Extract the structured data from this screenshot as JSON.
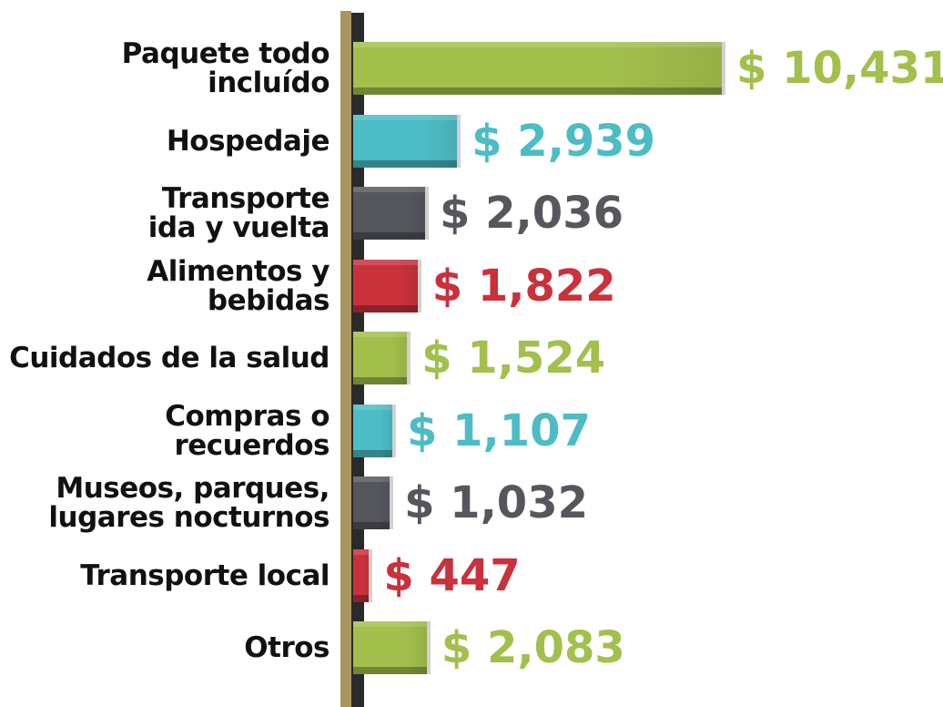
{
  "chart_data": {
    "type": "bar",
    "orientation": "horizontal",
    "categories": [
      "Paquete todo\nincluído",
      "Hospedaje",
      "Transporte\nida y vuelta",
      "Alimentos y\nbebidas",
      "Cuidados de la salud",
      "Compras o\nrecuerdos",
      "Museos, parques,\nlugares nocturnos",
      "Transporte local",
      "Otros"
    ],
    "values": [
      10431,
      2939,
      2036,
      1822,
      1524,
      1107,
      1032,
      447,
      2083
    ],
    "value_labels": [
      "$ 10,431",
      "$ 2,939",
      "$ 2,036",
      "$ 1,822",
      "$ 1,524",
      "$ 1,107",
      "$ 1,032",
      "$ 447",
      "$ 2,083"
    ],
    "colors": [
      "#a3bf4c",
      "#4cbcc5",
      "#55575d",
      "#c9313b",
      "#a3bf4c",
      "#4cbcc5",
      "#55575d",
      "#c9313b",
      "#a3bf4c"
    ]
  }
}
